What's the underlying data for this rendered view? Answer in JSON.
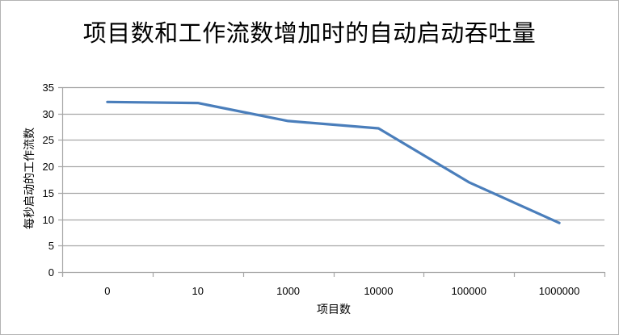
{
  "chart_data": {
    "type": "line",
    "title": "项目数和工作流数增加时的自动启动吞吐量",
    "xlabel": "项目数",
    "ylabel": "每秒启动的工作流数",
    "categories": [
      "0",
      "10",
      "1000",
      "10000",
      "100000",
      "1000000"
    ],
    "series": [
      {
        "name": "每秒启动的工作流数",
        "values": [
          32.2,
          32.0,
          28.6,
          27.2,
          17.0,
          9.3
        ],
        "color": "#4a7ebb"
      }
    ],
    "ylim": [
      0,
      35
    ],
    "yticks": [
      0,
      5,
      10,
      15,
      20,
      25,
      30,
      35
    ],
    "grid": true,
    "legend": "none"
  }
}
